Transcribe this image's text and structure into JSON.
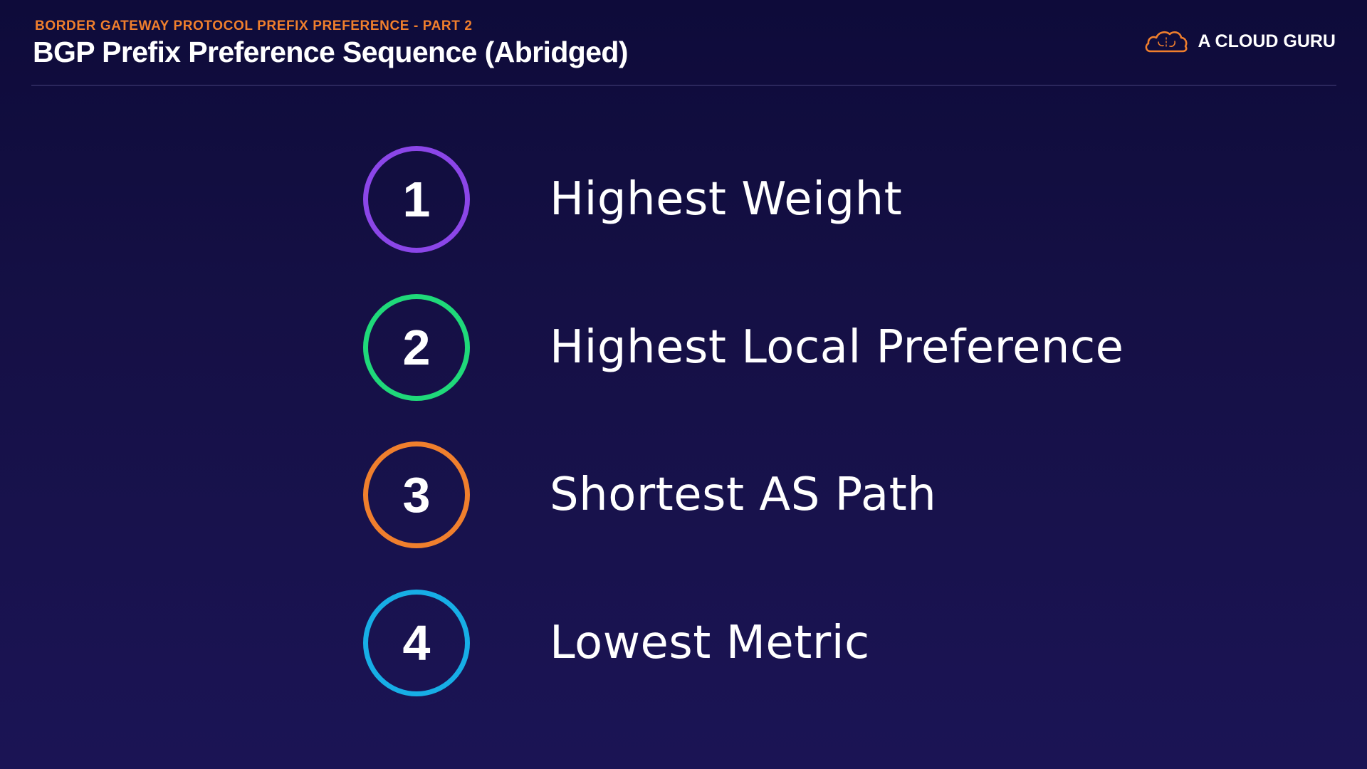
{
  "header": {
    "subtitle": "BORDER GATEWAY PROTOCOL PREFIX PREFERENCE - PART 2",
    "title": "BGP Prefix Preference Sequence (Abridged)",
    "subtitle_color": "#f07f2d"
  },
  "brand": {
    "name": "A CLOUD GURU",
    "logo_icon": "cloud-logo-icon",
    "logo_color": "#f07f2d"
  },
  "steps": [
    {
      "number": "1",
      "label": "Highest Weight",
      "color": "#8b46e8"
    },
    {
      "number": "2",
      "label": "Highest Local Preference",
      "color": "#1fd97a"
    },
    {
      "number": "3",
      "label": "Shortest AS Path",
      "color": "#f07f2d"
    },
    {
      "number": "4",
      "label": "Lowest Metric",
      "color": "#17aee6"
    }
  ]
}
